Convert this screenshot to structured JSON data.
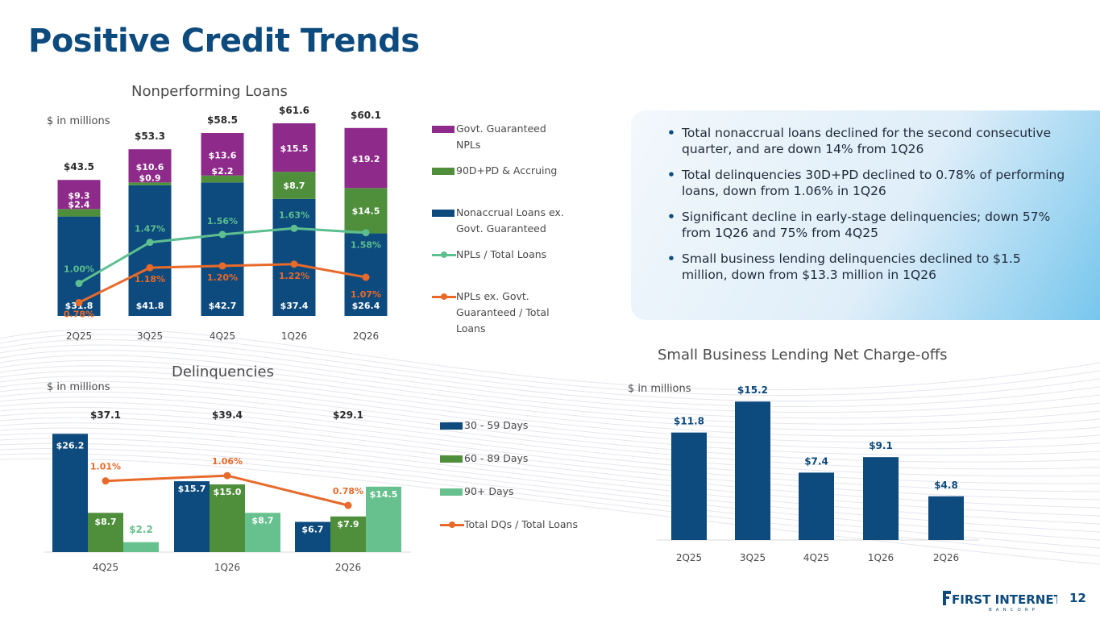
{
  "slide": {
    "title": "Positive Credit Trends",
    "page_number": "12",
    "logo_text": "FIRST INTERNET",
    "logo_subtext": "BANCORP"
  },
  "bullets": [
    "Total nonaccrual loans declined for the second consecutive quarter, and are down 14% from 1Q26",
    "Total delinquencies 30D+PD declined to 0.78% of performing loans, down from 1.06% in 1Q26",
    "Significant decline in early-stage delinquencies; down 57% from 1Q26 and 75% from 4Q25",
    "Small business lending delinquencies declined to $1.5 million, down from $13.3 million in 1Q26"
  ],
  "colors": {
    "title": "#0d4a7d",
    "navy": "#0d4a7d",
    "green": "#4f8f3c",
    "light_green": "#66c18e",
    "purple": "#8e2a8a",
    "teal_line": "#5dbf8f",
    "orange_line": "#e86a2a"
  },
  "chart_data": [
    {
      "type": "bar",
      "stacked": true,
      "title": "Nonperforming Loans",
      "unit_label": "$ in millions",
      "categories": [
        "2Q25",
        "3Q25",
        "4Q25",
        "1Q26",
        "2Q26"
      ],
      "series": [
        {
          "name": "Nonaccrual Loans ex. Govt. Guaranteed",
          "values": [
            31.8,
            41.8,
            42.7,
            37.4,
            26.4
          ],
          "labels": [
            "$31.8",
            "$41.8",
            "$42.7",
            "$37.4",
            "$26.4"
          ],
          "color": "#0d4a7d"
        },
        {
          "name": "90D+PD & Accruing",
          "values": [
            2.4,
            0.9,
            2.2,
            8.7,
            14.5
          ],
          "labels": [
            "$2.4",
            "$0.9",
            "$2.2",
            "$8.7",
            "$14.5"
          ],
          "color": "#4f8f3c"
        },
        {
          "name": "Govt. Guaranteed NPLs",
          "values": [
            9.3,
            10.6,
            13.6,
            15.5,
            19.2
          ],
          "labels": [
            "$9.3",
            "$10.6",
            "$13.6",
            "$15.5",
            "$19.2"
          ],
          "color": "#8e2a8a"
        }
      ],
      "totals": [
        "$43.5",
        "$53.3",
        "$58.5",
        "$61.6",
        "$60.1"
      ],
      "lines": [
        {
          "name": "NPLs / Total Loans",
          "values": [
            1.0,
            1.47,
            1.56,
            1.63,
            1.58
          ],
          "labels": [
            "1.00%",
            "1.47%",
            "1.56%",
            "1.63%",
            "1.58%"
          ],
          "color": "#5dbf8f"
        },
        {
          "name": "NPLs ex. Govt. Guaranteed / Total Loans",
          "values": [
            0.78,
            1.18,
            1.2,
            1.22,
            1.07
          ],
          "labels": [
            "0.78%",
            "1.18%",
            "1.20%",
            "1.22%",
            "1.07%"
          ],
          "color": "#e86a2a"
        }
      ],
      "legend_lines": [
        [
          "Govt. Guaranteed",
          "NPLs"
        ],
        [
          "90D+PD & Accruing"
        ],
        [
          "Nonaccrual Loans ex.",
          "Govt. Guaranteed"
        ],
        [
          "NPLs / Total Loans"
        ],
        [
          "NPLs ex. Govt.",
          "Guaranteed / Total",
          "Loans"
        ]
      ]
    },
    {
      "type": "bar",
      "grouped": true,
      "title": "Delinquencies",
      "unit_label": "$ in millions",
      "categories": [
        "4Q25",
        "1Q26",
        "2Q26"
      ],
      "series": [
        {
          "name": "30 - 59 Days",
          "values": [
            26.2,
            15.7,
            6.7
          ],
          "labels": [
            "$26.2",
            "$15.7",
            "$6.7"
          ],
          "color": "#0d4a7d"
        },
        {
          "name": "60 - 89 Days",
          "values": [
            8.7,
            15.0,
            7.9
          ],
          "labels": [
            "$8.7",
            "$15.0",
            "$7.9"
          ],
          "color": "#4f8f3c"
        },
        {
          "name": "90+ Days",
          "values": [
            2.2,
            8.7,
            14.5
          ],
          "labels": [
            "$2.2",
            "$8.7",
            "$14.5"
          ],
          "color": "#66c18e"
        }
      ],
      "totals": [
        "$37.1",
        "$39.4",
        "$29.1"
      ],
      "line": {
        "name": "Total DQs / Total Loans",
        "values": [
          1.01,
          1.06,
          0.78
        ],
        "labels": [
          "1.01%",
          "1.06%",
          "0.78%"
        ],
        "color": "#e86a2a"
      },
      "legend_lines": [
        [
          "30 - 59 Days"
        ],
        [
          "60 - 89 Days"
        ],
        [
          "90+ Days"
        ],
        [
          "Total DQs / Total Loans"
        ]
      ]
    },
    {
      "type": "bar",
      "title": "Small Business Lending Net Charge-offs",
      "unit_label": "$ in millions",
      "categories": [
        "2Q25",
        "3Q25",
        "4Q25",
        "1Q26",
        "2Q26"
      ],
      "values": [
        11.8,
        15.2,
        7.4,
        9.1,
        4.8
      ],
      "labels": [
        "$11.8",
        "$15.2",
        "$7.4",
        "$9.1",
        "$4.8"
      ],
      "color": "#0d4a7d"
    }
  ]
}
